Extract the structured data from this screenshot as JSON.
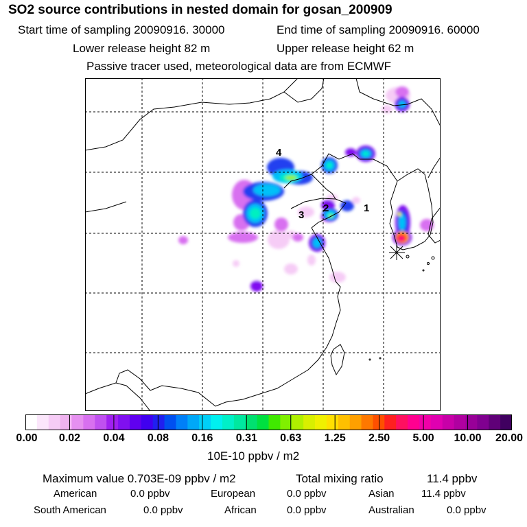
{
  "header": {
    "title": "SO2 source contributions in nested domain for gosan_200909",
    "start_label": "Start time of sampling 20090916. 30000",
    "end_label": "End time of sampling 20090916. 60000",
    "lower_label": "Lower release height   82 m",
    "upper_label": "Upper release height   62 m",
    "tracer_label": "Passive tracer used, meteorological data are from ECMWF"
  },
  "map": {
    "region_labels": [
      "4",
      "2",
      "3",
      "1"
    ],
    "receptor_symbol": "asterisk"
  },
  "colorbar": {
    "tick_labels": [
      "0.00",
      "0.02",
      "0.04",
      "0.08",
      "0.16",
      "0.31",
      "0.63",
      "1.25",
      "2.50",
      "5.00",
      "10.00",
      "20.00"
    ],
    "unit_label": "10E-10 ppbv / m2",
    "colors": [
      "#ffffff",
      "#fbe6fb",
      "#f6ccf6",
      "#f0b3f0",
      "#e690f0",
      "#d870f0",
      "#c050f0",
      "#a020f0",
      "#8010f0",
      "#6000f0",
      "#4000f0",
      "#2020f0",
      "#0050f0",
      "#0080f8",
      "#00a8f8",
      "#00d0f8",
      "#00f0f0",
      "#00f0c8",
      "#00e8a0",
      "#00e070",
      "#00e040",
      "#40e800",
      "#80f000",
      "#b0f000",
      "#d8f000",
      "#f0f000",
      "#ffe000",
      "#ffc000",
      "#ffa000",
      "#ff7800",
      "#ff5000",
      "#ff2020",
      "#ff1060",
      "#ff0090",
      "#f000a8",
      "#e000b0",
      "#c800a8",
      "#b000a0",
      "#980098",
      "#800090",
      "#600078",
      "#400060"
    ]
  },
  "footer": {
    "max_label": "Maximum value  0.703E-09 ppbv / m2",
    "total_label": "Total mixing ratio",
    "total_value": "11.4 ppbv",
    "regions": [
      {
        "name": "American",
        "value": "0.0 ppbv"
      },
      {
        "name": "European",
        "value": "0.0 ppbv"
      },
      {
        "name": "Asian",
        "value": "11.4 ppbv"
      },
      {
        "name": "South American",
        "value": "0.0 ppbv"
      },
      {
        "name": "African",
        "value": "0.0 ppbv"
      },
      {
        "name": "Australian",
        "value": "0.0 ppbv"
      }
    ]
  }
}
